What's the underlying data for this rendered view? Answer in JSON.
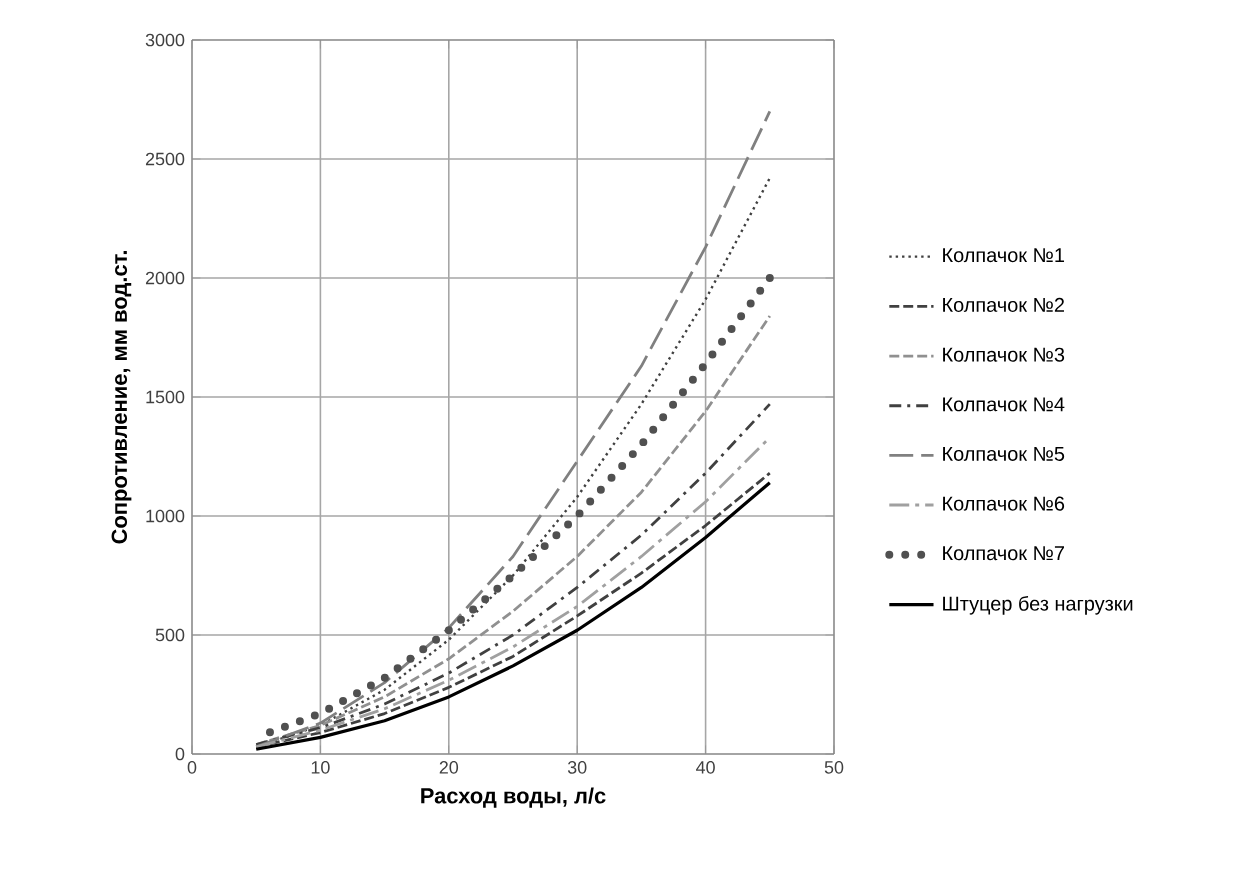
{
  "chart_data": {
    "type": "line",
    "xlabel": "Расход воды, л/с",
    "ylabel": "Сопротивление, мм вод.ст.",
    "x": [
      5,
      10,
      15,
      20,
      25,
      30,
      35,
      40,
      45
    ],
    "xlim": [
      0,
      50
    ],
    "xticks": [
      0,
      10,
      20,
      30,
      40,
      50
    ],
    "ylim": [
      0,
      3000
    ],
    "yticks": [
      0,
      500,
      1000,
      1500,
      2000,
      2500,
      3000
    ],
    "grid": true,
    "legend": "right",
    "series": [
      {
        "name": "Колпачок №1",
        "color": "#404040",
        "line_style": "dotted",
        "values": [
          30,
          120,
          270,
          480,
          750,
          1080,
          1470,
          1910,
          2420
        ]
      },
      {
        "name": "Колпачок №2",
        "color": "#404040",
        "line_style": "dashed",
        "values": [
          30,
          90,
          170,
          280,
          410,
          580,
          760,
          960,
          1180
        ]
      },
      {
        "name": "Колпачок №3",
        "color": "#909090",
        "line_style": "dashed",
        "values": [
          40,
          120,
          240,
          400,
          600,
          830,
          1100,
          1440,
          1840
        ]
      },
      {
        "name": "Колпачок №4",
        "color": "#404040",
        "line_style": "dashdot",
        "values": [
          40,
          110,
          210,
          340,
          500,
          700,
          920,
          1180,
          1470
        ]
      },
      {
        "name": "Колпачок №5",
        "color": "#808080",
        "line_style": "longdash",
        "values": [
          30,
          130,
          300,
          530,
          830,
          1230,
          1630,
          2130,
          2700
        ]
      },
      {
        "name": "Колпачок №6",
        "color": "#a0a0a0",
        "line_style": "longdashdot",
        "values": [
          30,
          100,
          190,
          310,
          450,
          620,
          830,
          1060,
          1330
        ]
      },
      {
        "name": "Колпачок №7",
        "color": "#505050",
        "line_style": "dots",
        "values": [
          70,
          170,
          320,
          520,
          750,
          1000,
          1300,
          1640,
          2000
        ]
      },
      {
        "name": "Штуцер без нагрузки",
        "color": "#000000",
        "line_style": "solid",
        "values": [
          20,
          70,
          140,
          240,
          370,
          520,
          700,
          910,
          1140
        ]
      }
    ]
  }
}
